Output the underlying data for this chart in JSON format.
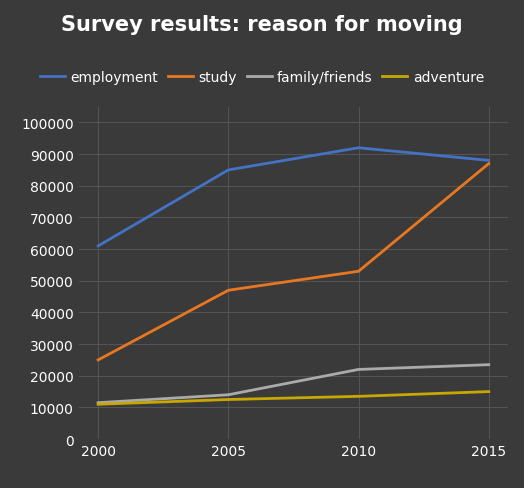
{
  "title": "Survey results: reason for moving",
  "x": [
    2000,
    2005,
    2010,
    2015
  ],
  "series": {
    "employment": {
      "values": [
        61000,
        85000,
        92000,
        88000
      ],
      "color": "#4472C4",
      "linewidth": 2.0
    },
    "study": {
      "values": [
        25000,
        47000,
        53000,
        87000
      ],
      "color": "#E87722",
      "linewidth": 2.0
    },
    "family/friends": {
      "values": [
        11500,
        14000,
        22000,
        23500
      ],
      "color": "#AAAAAA",
      "linewidth": 2.0
    },
    "adventure": {
      "values": [
        11000,
        12500,
        13500,
        15000
      ],
      "color": "#C8A800",
      "linewidth": 2.0
    }
  },
  "ylim": [
    0,
    105000
  ],
  "yticks": [
    0,
    10000,
    20000,
    30000,
    40000,
    50000,
    60000,
    70000,
    80000,
    90000,
    100000
  ],
  "xticks": [
    2000,
    2005,
    2010,
    2015
  ],
  "background_color": "#3A3A3A",
  "plot_bg_color": "#3A3A3A",
  "grid_color": "#555555",
  "text_color": "#FFFFFF",
  "title_fontsize": 15,
  "tick_fontsize": 10,
  "legend_fontsize": 10
}
